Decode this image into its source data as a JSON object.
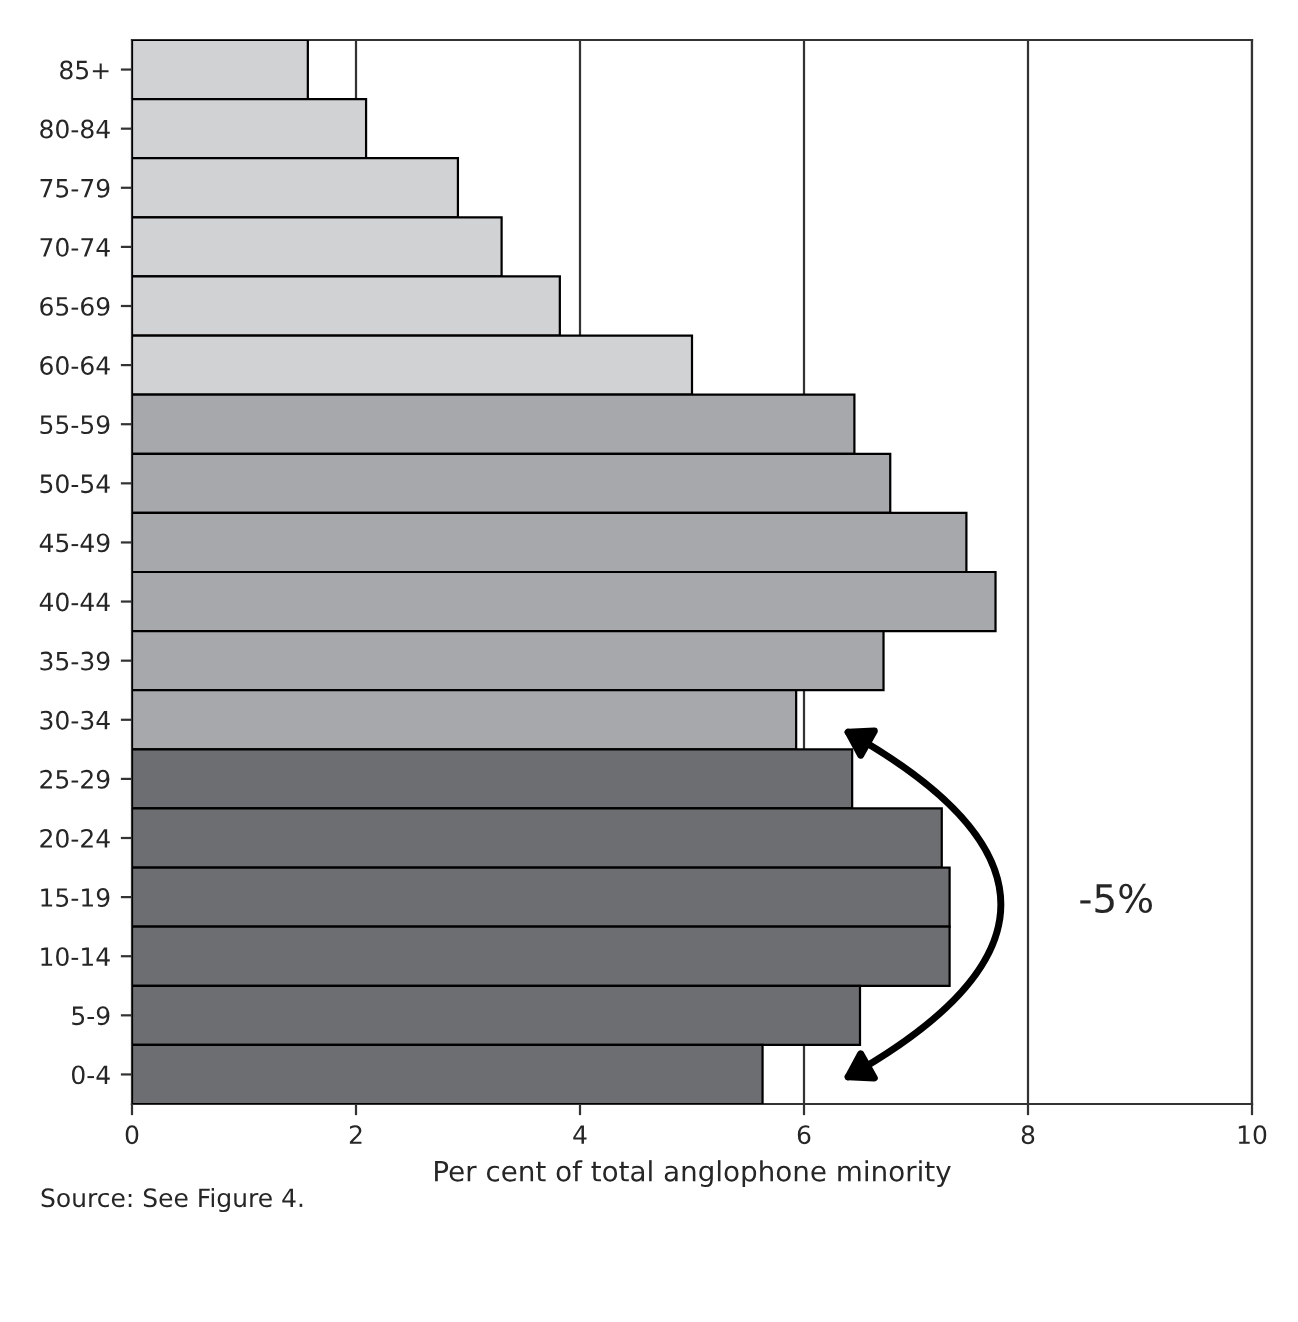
{
  "chart_data": {
    "type": "bar",
    "orientation": "horizontal",
    "categories": [
      "85+",
      "80-84",
      "75-79",
      "70-74",
      "65-69",
      "60-64",
      "55-59",
      "50-54",
      "45-49",
      "40-44",
      "35-39",
      "30-34",
      "25-29",
      "20-24",
      "15-19",
      "10-14",
      "5-9",
      "0-4"
    ],
    "values": [
      1.57,
      2.09,
      2.91,
      3.3,
      3.82,
      5.0,
      6.45,
      6.77,
      7.45,
      7.71,
      6.71,
      5.93,
      6.43,
      7.23,
      7.3,
      7.3,
      6.5,
      5.63
    ],
    "colors": [
      "#d1d2d4",
      "#d1d2d4",
      "#d1d2d4",
      "#d1d2d4",
      "#d1d2d4",
      "#d1d2d4",
      "#a7a8ab",
      "#a7a8ab",
      "#a7a8ab",
      "#a7a8ab",
      "#a7a8ab",
      "#a7a8ab",
      "#6d6e71",
      "#6d6e71",
      "#6d6e71",
      "#6d6e71",
      "#6d6e71",
      "#6d6e71"
    ],
    "xlabel": "Per cent of total anglophone minority",
    "xlim": [
      0,
      10
    ],
    "xticks": [
      0,
      2,
      4,
      6,
      8,
      10
    ],
    "grid": "x",
    "annotations": [
      "-5%",
      "Source: See Figure 4."
    ]
  }
}
